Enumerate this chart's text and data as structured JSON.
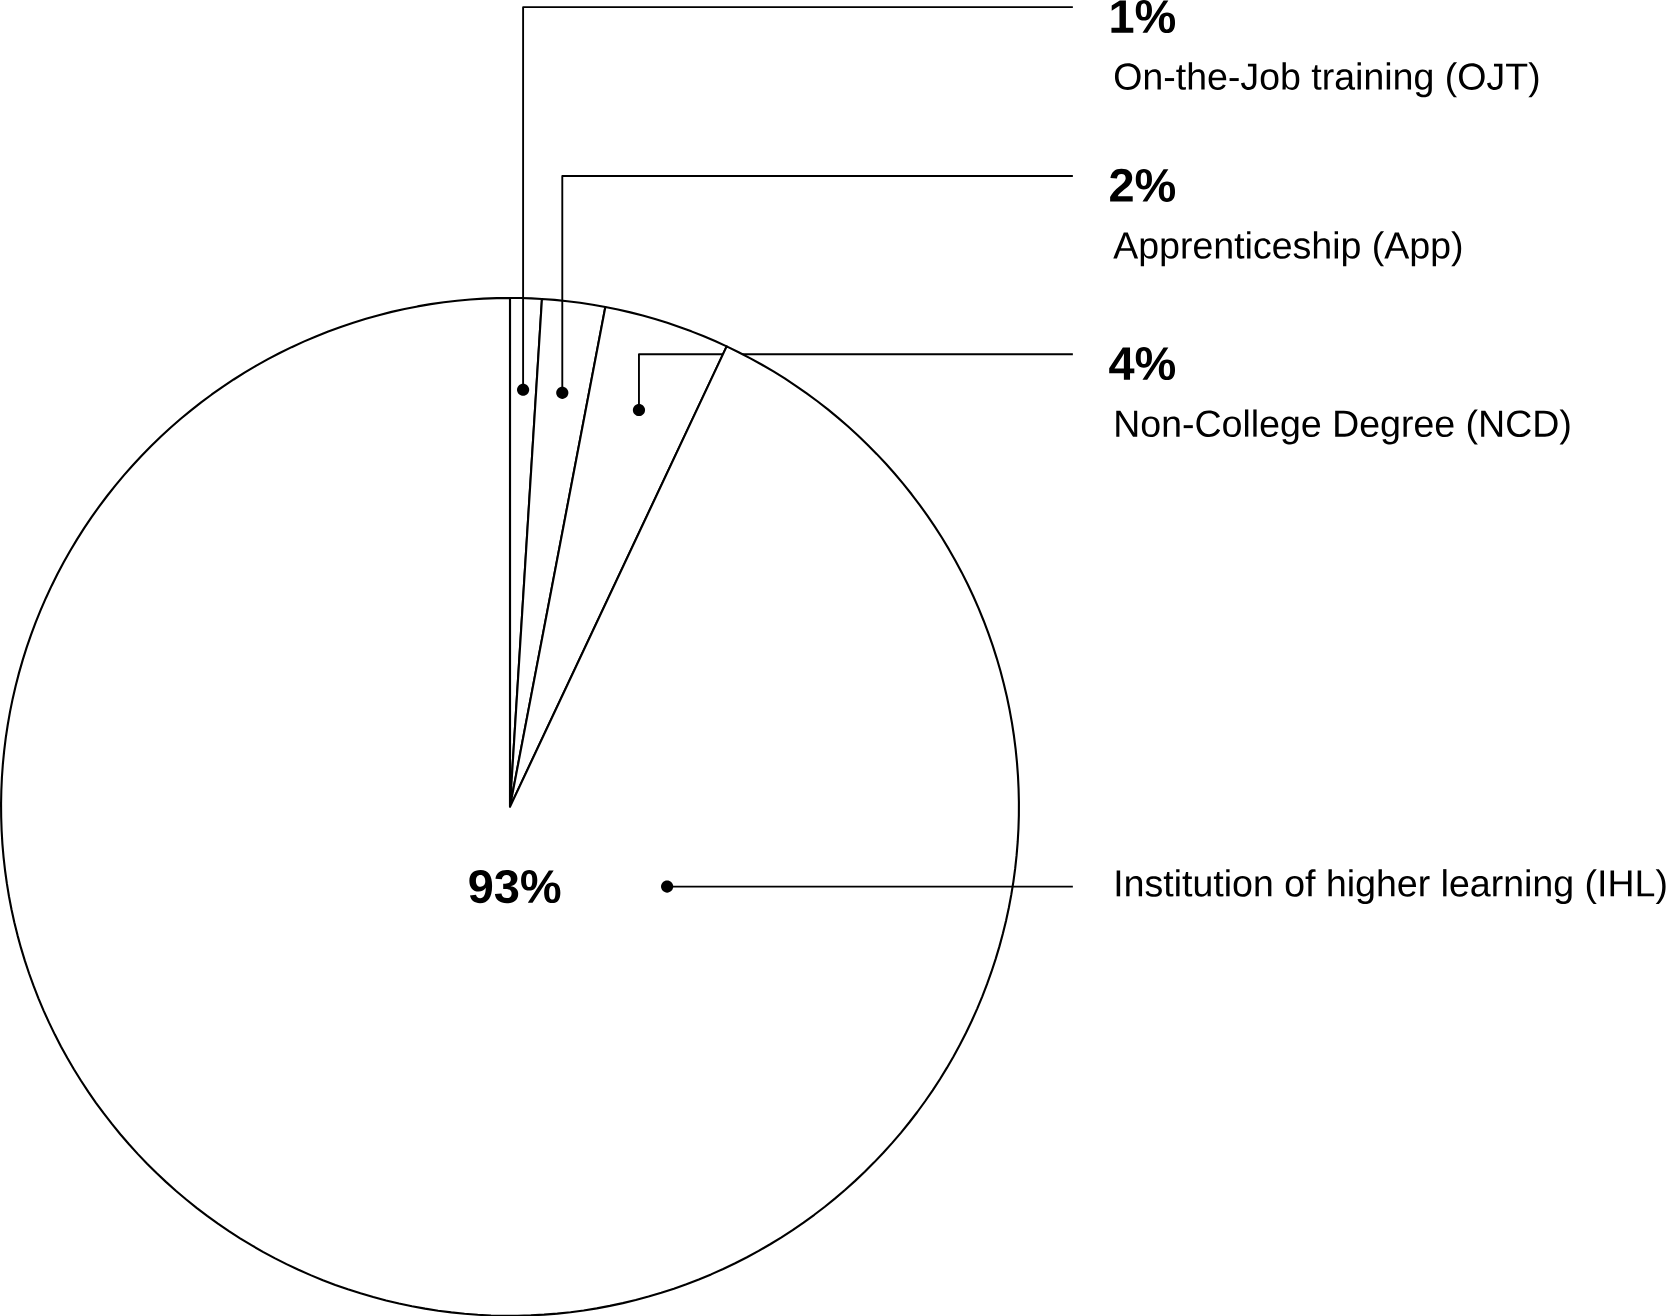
{
  "chart_data": {
    "type": "pie",
    "categories": [
      "On-the-Job training (OJT)",
      "Apprenticeship (App)",
      "Non-College Degree (NCD)",
      "Institution of higher learning (IHL)"
    ],
    "values": [
      1,
      2,
      4,
      93
    ],
    "colors": [
      "#ffffff",
      "#ffffff",
      "#ffffff",
      "#ffffff"
    ],
    "value_labels": [
      "1%",
      "2%",
      "4%",
      "93%"
    ]
  }
}
